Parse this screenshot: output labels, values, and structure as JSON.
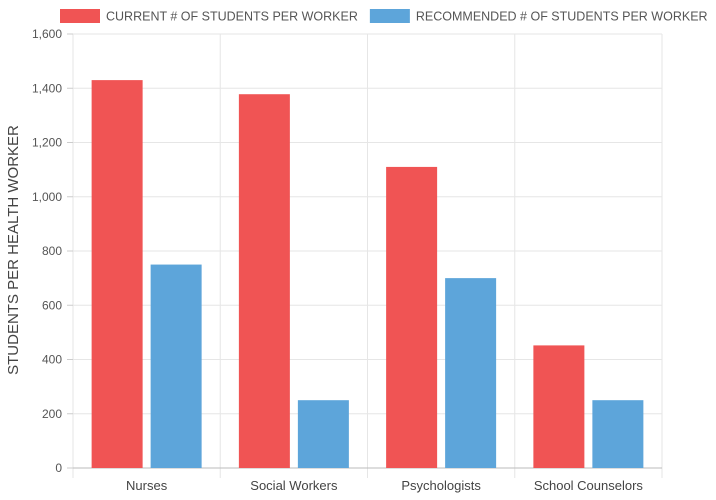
{
  "chart_data": {
    "type": "bar",
    "categories": [
      "Nurses",
      "Social Workers",
      "Psychologists",
      "School Counselors"
    ],
    "series": [
      {
        "name": "CURRENT # OF STUDENTS PER WORKER",
        "color": "#f05454",
        "values": [
          1430,
          1378,
          1110,
          452
        ]
      },
      {
        "name": "RECOMMENDED # OF STUDENTS PER WORKER",
        "color": "#5da5da",
        "values": [
          750,
          250,
          700,
          250
        ]
      }
    ],
    "ylabel": "STUDENTS PER HEALTH WORKER",
    "xlabel": "",
    "ylim": [
      0,
      1600
    ],
    "yticks": [
      0,
      200,
      400,
      600,
      800,
      1000,
      1200,
      1400,
      1600
    ],
    "ytick_labels": [
      "0",
      "200",
      "400",
      "600",
      "800",
      "1,000",
      "1,200",
      "1,400",
      "1,600"
    ],
    "grid": true,
    "legend_position": "top"
  }
}
